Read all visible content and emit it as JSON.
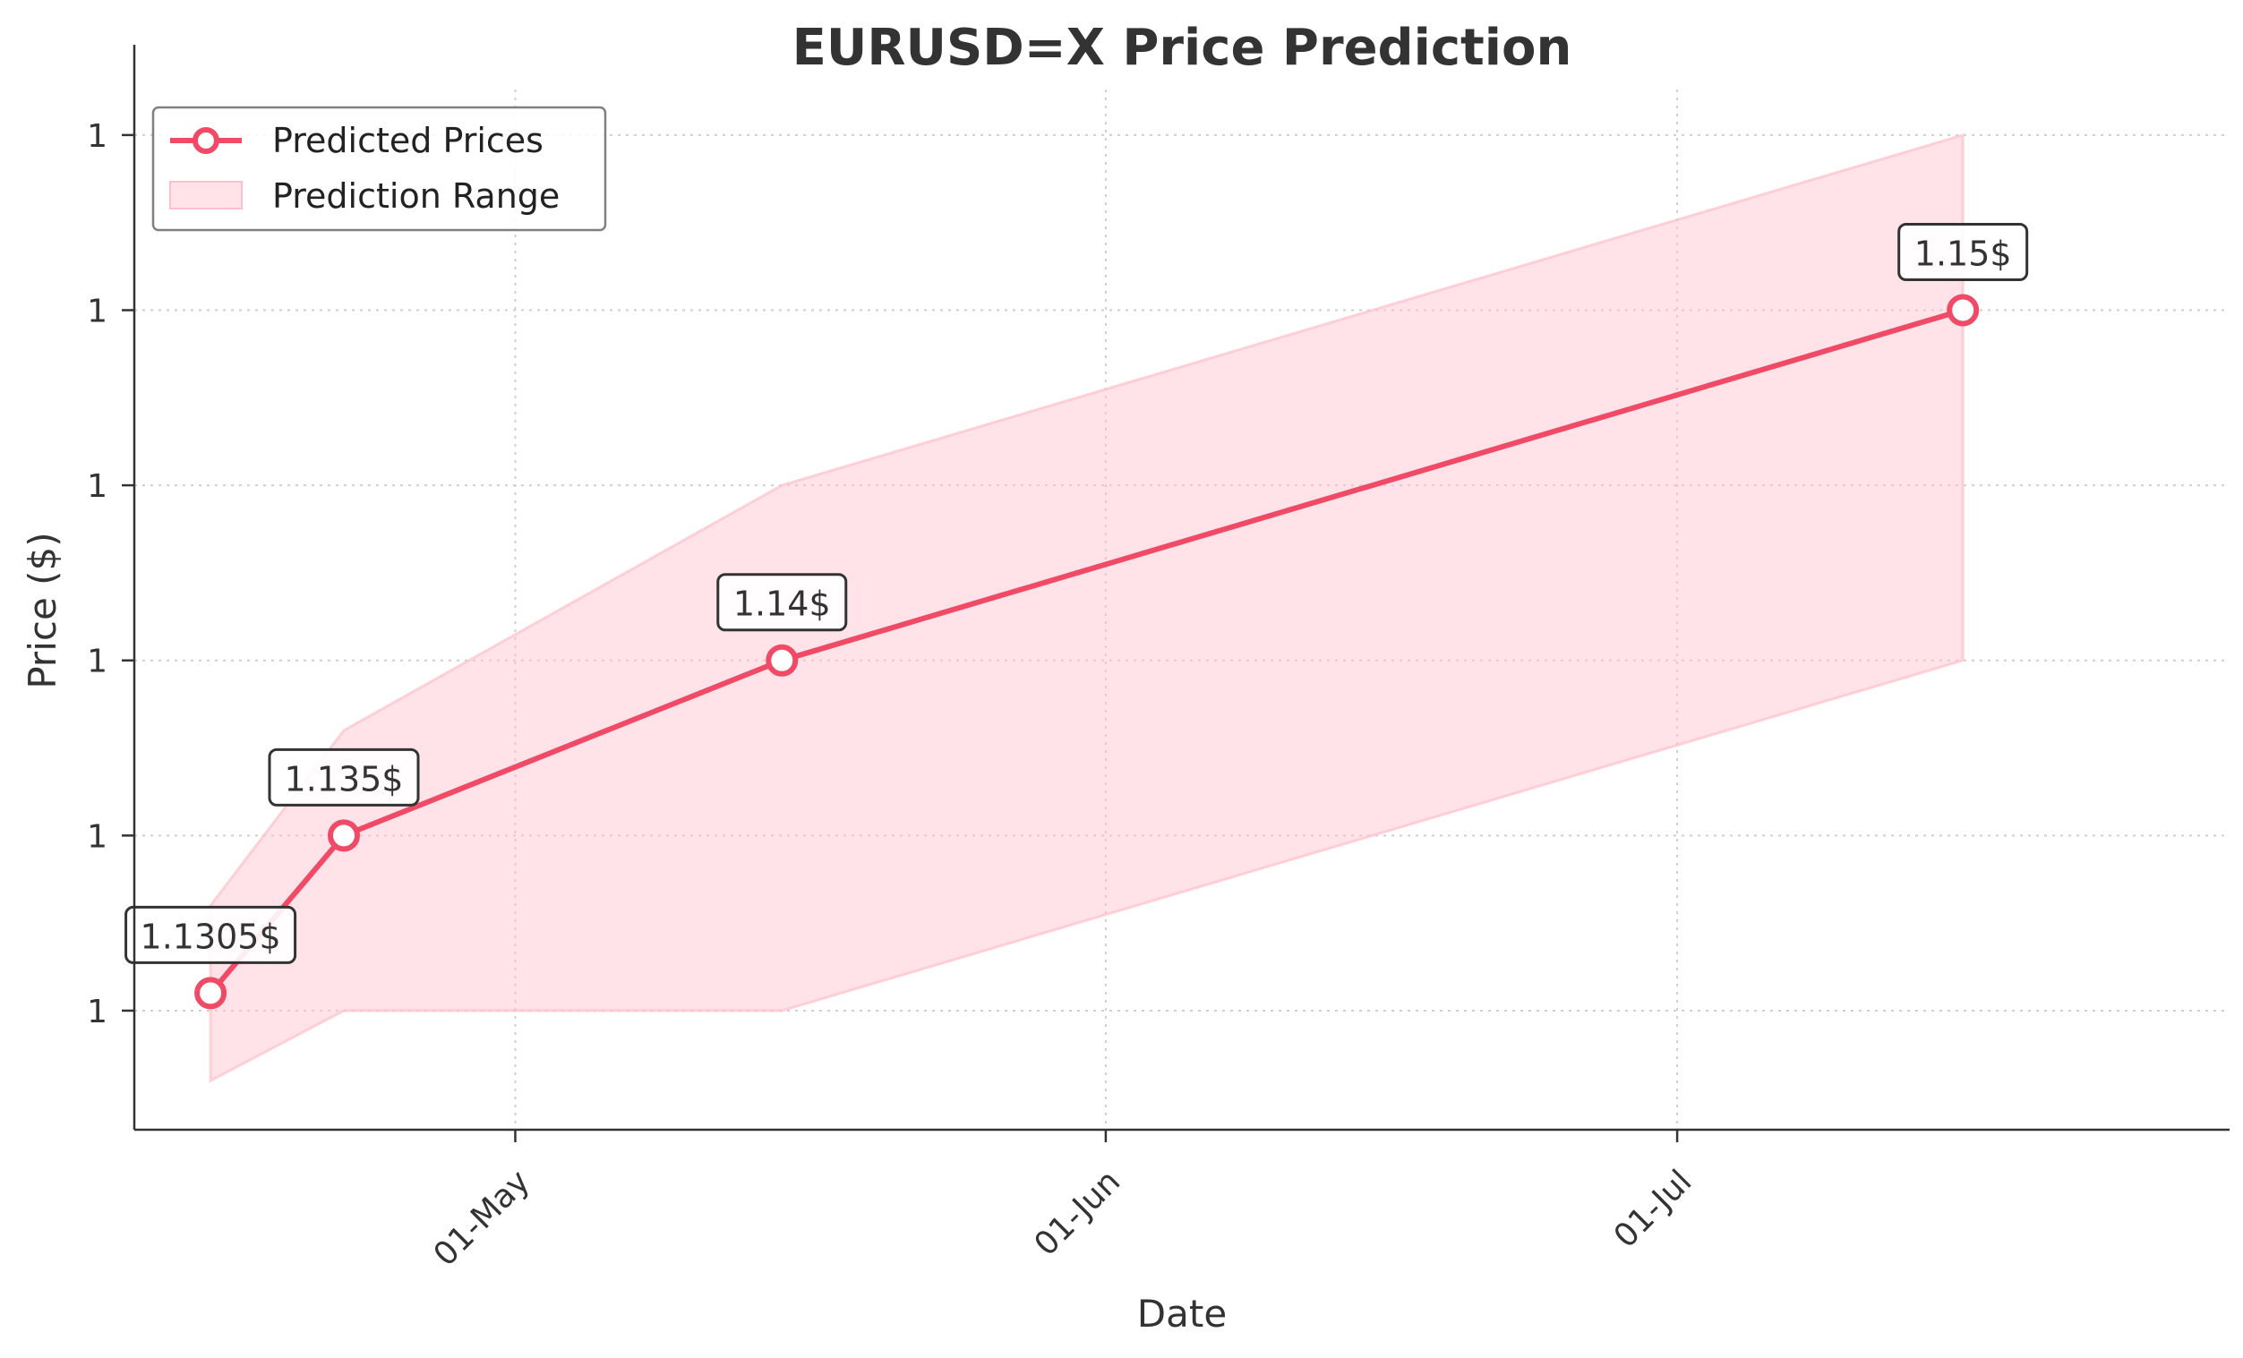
{
  "chart_data": {
    "type": "line",
    "title": "EURUSD=X Price Prediction",
    "xlabel": "Date",
    "ylabel": "Price ($)",
    "x_ticks": [
      {
        "date": "2025-05-01",
        "label": "01-May"
      },
      {
        "date": "2025-06-01",
        "label": "01-Jun"
      },
      {
        "date": "2025-07-01",
        "label": "01-Jul"
      }
    ],
    "y_ticks": [
      {
        "value": 1.13,
        "label": "1"
      },
      {
        "value": 1.135,
        "label": "1"
      },
      {
        "value": 1.14,
        "label": "1"
      },
      {
        "value": 1.145,
        "label": "1"
      },
      {
        "value": 1.15,
        "label": "1"
      },
      {
        "value": 1.155,
        "label": "1"
      }
    ],
    "xlim": [
      "2025-04-11",
      "2025-07-30"
    ],
    "ylim": [
      1.1266,
      1.1563
    ],
    "grid": true,
    "legend_position": "top-left",
    "series": [
      {
        "name": "Predicted Prices",
        "color": "#f04a66",
        "points": [
          {
            "date": "2025-04-15",
            "value": 1.1305,
            "label": "1.1305$"
          },
          {
            "date": "2025-04-22",
            "value": 1.135,
            "label": "1.135$"
          },
          {
            "date": "2025-05-15",
            "value": 1.14,
            "label": "1.14$"
          },
          {
            "date": "2025-07-16",
            "value": 1.15,
            "label": "1.15$"
          }
        ]
      }
    ],
    "range": {
      "name": "Prediction Range",
      "color": "#ffc0cb",
      "points": [
        {
          "date": "2025-04-15",
          "low": 1.128,
          "high": 1.133
        },
        {
          "date": "2025-04-22",
          "low": 1.13,
          "high": 1.138
        },
        {
          "date": "2025-05-15",
          "low": 1.13,
          "high": 1.145
        },
        {
          "date": "2025-07-16",
          "low": 1.14,
          "high": 1.155
        }
      ]
    }
  }
}
